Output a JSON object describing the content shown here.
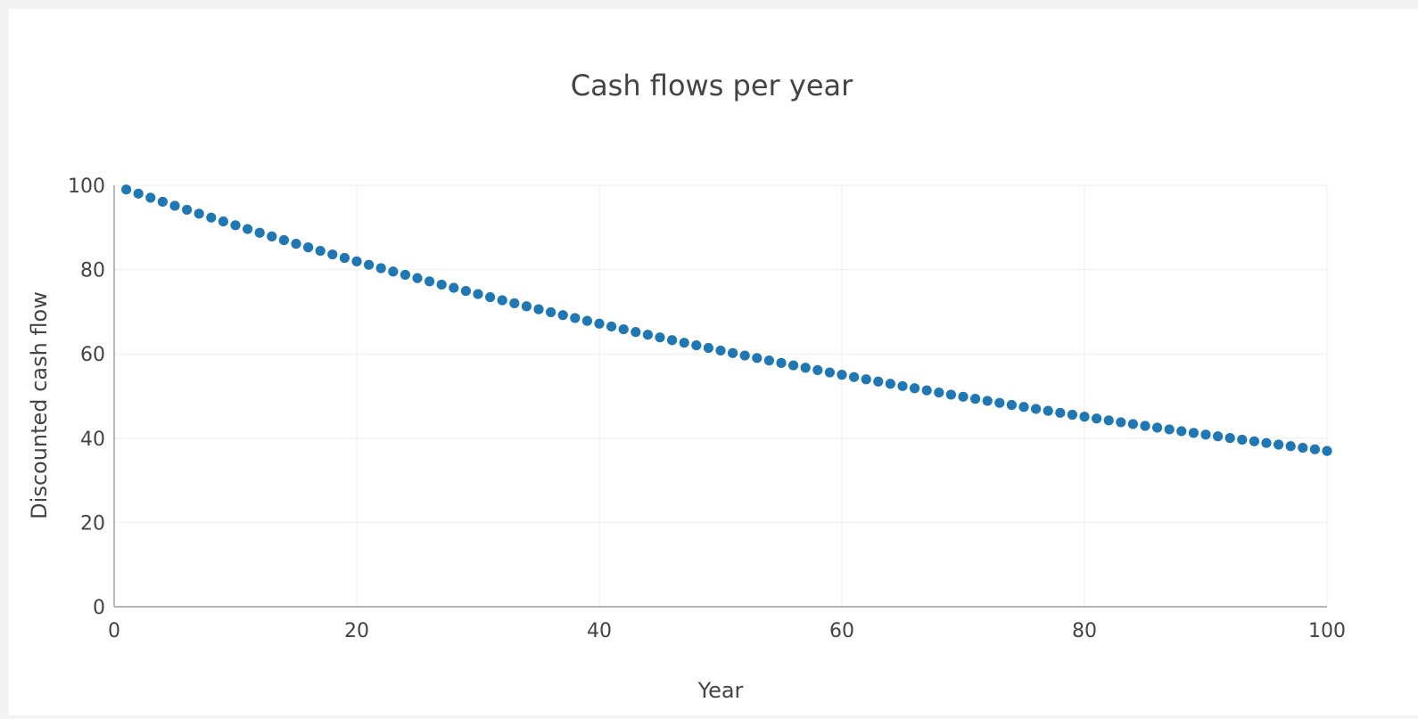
{
  "chart_data": {
    "type": "scatter",
    "title": "Cash flows per year",
    "xlabel": "Year",
    "ylabel": "Discounted cash flow",
    "xlim": [
      0,
      100
    ],
    "ylim": [
      0,
      100
    ],
    "x_ticks": [
      0,
      20,
      40,
      60,
      80,
      100
    ],
    "y_ticks": [
      0,
      20,
      40,
      60,
      80,
      100
    ],
    "grid": true,
    "legend": "none",
    "marker_color": "#1f77b4",
    "series": [
      {
        "x": [
          1,
          2,
          3,
          4,
          5,
          6,
          7,
          8,
          9,
          10,
          11,
          12,
          13,
          14,
          15,
          16,
          17,
          18,
          19,
          20,
          21,
          22,
          23,
          24,
          25,
          26,
          27,
          28,
          29,
          30,
          31,
          32,
          33,
          34,
          35,
          36,
          37,
          38,
          39,
          40,
          41,
          42,
          43,
          44,
          45,
          46,
          47,
          48,
          49,
          50,
          51,
          52,
          53,
          54,
          55,
          56,
          57,
          58,
          59,
          60,
          61,
          62,
          63,
          64,
          65,
          66,
          67,
          68,
          69,
          70,
          71,
          72,
          73,
          74,
          75,
          76,
          77,
          78,
          79,
          80,
          81,
          82,
          83,
          84,
          85,
          86,
          87,
          88,
          89,
          90,
          91,
          92,
          93,
          94,
          95,
          96,
          97,
          98,
          99,
          100
        ],
        "y": [
          99.01,
          98.03,
          97.06,
          96.1,
          95.15,
          94.2,
          93.27,
          92.35,
          91.43,
          90.53,
          89.63,
          88.74,
          87.87,
          87.0,
          86.13,
          85.28,
          84.44,
          83.6,
          82.77,
          81.95,
          81.14,
          80.34,
          79.54,
          78.76,
          77.98,
          77.2,
          76.44,
          75.68,
          74.93,
          74.19,
          73.46,
          72.73,
          72.01,
          71.3,
          70.59,
          69.89,
          69.2,
          68.51,
          67.84,
          67.17,
          66.5,
          65.84,
          65.19,
          64.54,
          63.91,
          63.27,
          62.65,
          62.03,
          61.41,
          60.8,
          60.2,
          59.61,
          59.02,
          58.43,
          57.85,
          57.28,
          56.71,
          56.15,
          55.59,
          55.04,
          54.5,
          53.96,
          53.43,
          52.9,
          52.37,
          51.85,
          51.34,
          50.83,
          50.33,
          49.83,
          49.34,
          48.85,
          48.37,
          47.89,
          47.41,
          46.94,
          46.48,
          46.02,
          45.56,
          45.11,
          44.66,
          44.22,
          43.78,
          43.35,
          42.92,
          42.5,
          42.08,
          41.66,
          41.25,
          40.84,
          40.44,
          40.04,
          39.64,
          39.25,
          38.86,
          38.48,
          38.1,
          37.72,
          37.35,
          36.97
        ]
      }
    ]
  }
}
